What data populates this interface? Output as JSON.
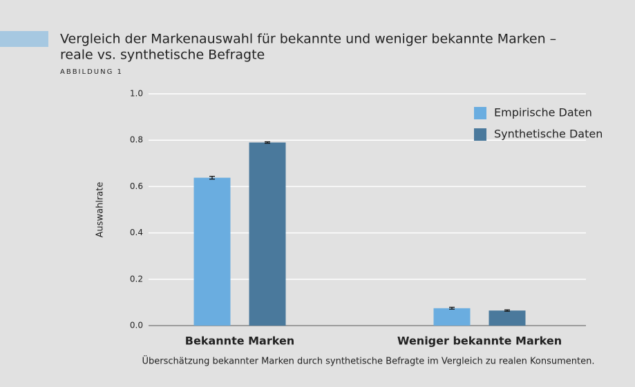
{
  "chart_data": {
    "type": "bar",
    "title": [
      "Vergleich der Markenauswahl für bekannte und weniger bekannte Marken –",
      "reale vs. synthetische Befragte"
    ],
    "figure_label": "ABBILDUNG 1",
    "y_label": "Auswahlrate",
    "caption": "Überschätzung bekannter Marken durch synthetische Befragte im Vergleich zu realen Konsumenten.",
    "categories": [
      "Bekannte Marken",
      "Weniger bekannte Marken"
    ],
    "series": [
      {
        "name": "Empirische Daten",
        "color": "#6aade0",
        "values": [
          0.638,
          0.075
        ],
        "error": [
          0.006,
          0.004
        ]
      },
      {
        "name": "Synthetische Daten",
        "color": "#4a799c",
        "values": [
          0.79,
          0.065
        ],
        "error": [
          0.003,
          0.003
        ]
      }
    ],
    "ylim": [
      0,
      1.0
    ],
    "yticks": [
      {
        "value": 0,
        "label": "0.0"
      },
      0.2,
      0.4,
      0.6,
      0.8,
      {
        "value": 1,
        "label": "1.0"
      }
    ],
    "grid": true,
    "legend": "upper right"
  }
}
